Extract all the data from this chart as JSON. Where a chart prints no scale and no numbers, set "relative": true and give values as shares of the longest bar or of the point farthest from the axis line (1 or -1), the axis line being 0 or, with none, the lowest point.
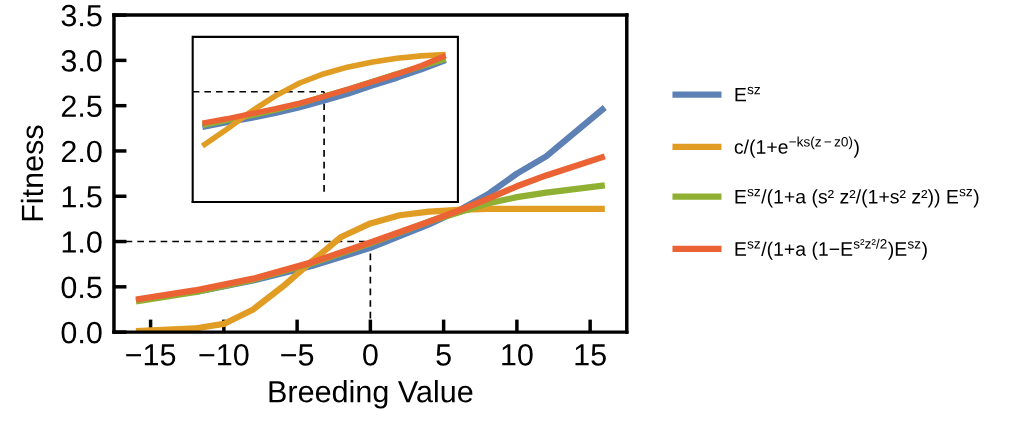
{
  "chart_data": [
    {
      "type": "line",
      "xlabel": "Breeding Value",
      "ylabel": "Fitness",
      "xlim": [
        -17.5,
        17.5
      ],
      "ylim": [
        0,
        3.5
      ],
      "xticks": [
        {
          "value": -15,
          "label": "−15"
        },
        {
          "value": -10,
          "label": "−10"
        },
        {
          "value": -5,
          "label": "−5"
        },
        0,
        5,
        10,
        15
      ],
      "yticks": [
        {
          "value": 0,
          "label": "0.0"
        },
        0.5,
        {
          "value": 1,
          "label": "1.0"
        },
        1.5,
        {
          "value": 2,
          "label": "2.0"
        },
        2.5,
        {
          "value": 3,
          "label": "3.0"
        },
        3.5
      ],
      "grid": false,
      "legend": "right",
      "marker": "none",
      "series": [
        {
          "name": "E$^{sz}$",
          "color": "#5e81b5",
          "x": [
            -12,
            -8,
            -4,
            0,
            4,
            6,
            8,
            10,
            12,
            16
          ],
          "values": [
            0.44,
            0.57,
            0.73,
            0.93,
            1.19,
            1.34,
            1.52,
            1.75,
            1.94,
            2.48
          ]
        },
        {
          "name": "c/(1+e$^{−ks(z−z0)}$)",
          "color": "#e19c24",
          "x": [
            -16,
            -12,
            -10,
            -8,
            -6,
            -4,
            -2,
            0,
            2,
            4,
            6,
            8,
            12,
            16
          ],
          "values": [
            0.01,
            0.04,
            0.09,
            0.25,
            0.5,
            0.78,
            1.05,
            1.2,
            1.29,
            1.33,
            1.35,
            1.36,
            1.36,
            1.36
          ]
        },
        {
          "name": "E$^{sz}$/(1+a (s² z²/(1+s² z²)) E$^{sz}$)",
          "color": "#8fb032",
          "x": [
            -16,
            -12,
            -8,
            -4,
            0,
            4,
            6,
            8,
            10,
            12,
            16
          ],
          "values": [
            0.34,
            0.44,
            0.58,
            0.76,
            0.98,
            1.22,
            1.32,
            1.42,
            1.49,
            1.54,
            1.62
          ]
        },
        {
          "name": "E$^{sz}$/(1+a (1−E$^{s²z²/2}$)E$^{sz}$)",
          "color": "#eb6235",
          "x": [
            -16,
            -12,
            -8,
            -4,
            0,
            4,
            6,
            8,
            10,
            12,
            16
          ],
          "values": [
            0.36,
            0.46,
            0.59,
            0.77,
            0.99,
            1.22,
            1.34,
            1.47,
            1.61,
            1.73,
            1.94
          ]
        },
        {
          "color": "#000000",
          "line_style": "dashed",
          "x": [
            -17.5,
            0,
            0
          ],
          "values": [
            1,
            1,
            0
          ]
        }
      ]
    },
    {
      "type": "line",
      "relative": true,
      "tick_labels": false,
      "grid": false,
      "marker": "none",
      "categories": [
        null,
        null,
        null,
        null,
        null,
        null,
        null,
        null,
        null,
        null,
        null
      ],
      "series": [
        {
          "color": "#5e81b5",
          "values": [
            0.507,
            0.539,
            0.568,
            0.602,
            0.641,
            0.686,
            0.734,
            0.789,
            0.841,
            0.898,
            0.961
          ]
        },
        {
          "color": "#8fb032",
          "values": [
            0.52,
            0.555,
            0.586,
            0.623,
            0.666,
            0.718,
            0.766,
            0.818,
            0.87,
            0.92,
            0.97
          ]
        },
        {
          "color": "#e19c24",
          "values": [
            0.38,
            0.493,
            0.614,
            0.72,
            0.807,
            0.87,
            0.916,
            0.95,
            0.975,
            0.991,
            1
          ]
        },
        {
          "color": "#eb6235",
          "values": [
            0.534,
            0.564,
            0.598,
            0.632,
            0.67,
            0.716,
            0.766,
            0.816,
            0.868,
            0.925,
            0.993
          ]
        }
      ],
      "ref_lines": [
        {
          "axis": "y",
          "value": 0.748,
          "color": "#000000",
          "line_style": "dashed"
        }
      ]
    }
  ]
}
